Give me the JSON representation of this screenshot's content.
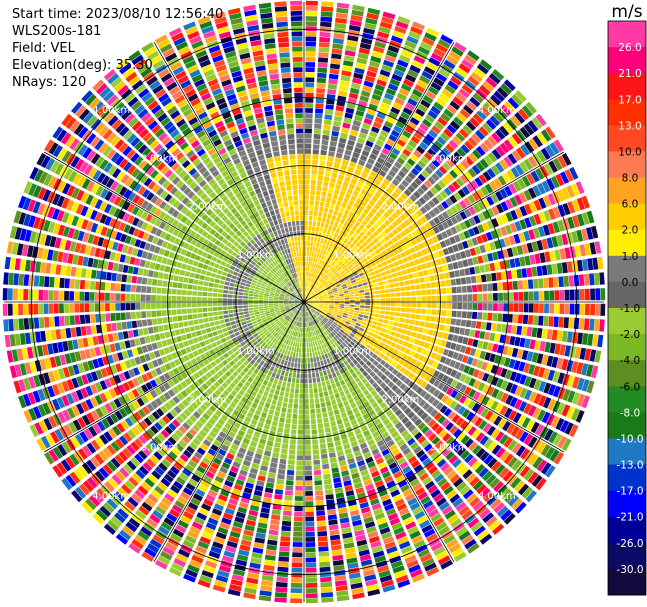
{
  "info": {
    "start_time": "Start time: 2023/08/10 12:56:40",
    "instrument": "WLS200s-181",
    "field": "Field: VEL",
    "elevation": "Elevation(deg): 35.30",
    "nrays": "NRays: 120"
  },
  "chart_data": {
    "type": "heatmap",
    "subtype": "polar PPI scan",
    "field": "VEL",
    "units": "m/s",
    "range_ring_labels": [
      "1.00km",
      "2.00km",
      "3.00km",
      "4.00km"
    ],
    "range_rings_km": [
      1,
      2,
      3,
      4
    ],
    "max_range_km": 4.4,
    "n_rays": 120,
    "colorbar": {
      "title": "m/s",
      "tick_labels": [
        "26.0",
        "21.0",
        "17.0",
        "13.0",
        "10.0",
        "8.0",
        "6.0",
        "2.0",
        "1.0",
        "0.0",
        "-1.0",
        "-2.0",
        "-4.0",
        "-6.0",
        "-8.0",
        "-10.0",
        "-13.0",
        "-17.0",
        "-21.0",
        "-26.0",
        "-30.0"
      ],
      "colors": [
        "#ff3aa4",
        "#ff007a",
        "#ff1515",
        "#ff2f00",
        "#ff4a21",
        "#ff7a52",
        "#ffa321",
        "#ffcc00",
        "#ffee00",
        "#7a7a7a",
        "#656565",
        "#99cc33",
        "#7ab826",
        "#5c8f1f",
        "#228b22",
        "#1a7a1a",
        "#1f78c4",
        "#0033cc",
        "#0000ff",
        "#000099",
        "#0b0b66",
        "#120a3c"
      ]
    },
    "regions": [
      {
        "sign": "positive",
        "value_range": [
          1.0,
          2.0
        ],
        "azimuth_deg": [
          0,
          120
        ],
        "range_km": [
          0,
          2.4
        ]
      },
      {
        "sign": "negative",
        "value_range": [
          -2.0,
          -1.0
        ],
        "azimuth_deg": [
          150,
          330
        ],
        "range_km": [
          0,
          2.6
        ]
      },
      {
        "sign": "near-zero",
        "value_range": [
          -1.0,
          1.0
        ],
        "range_km": [
          0.9,
          2.7
        ]
      },
      {
        "sign": "noise",
        "range_km": [
          2.6,
          4.4
        ]
      }
    ]
  }
}
